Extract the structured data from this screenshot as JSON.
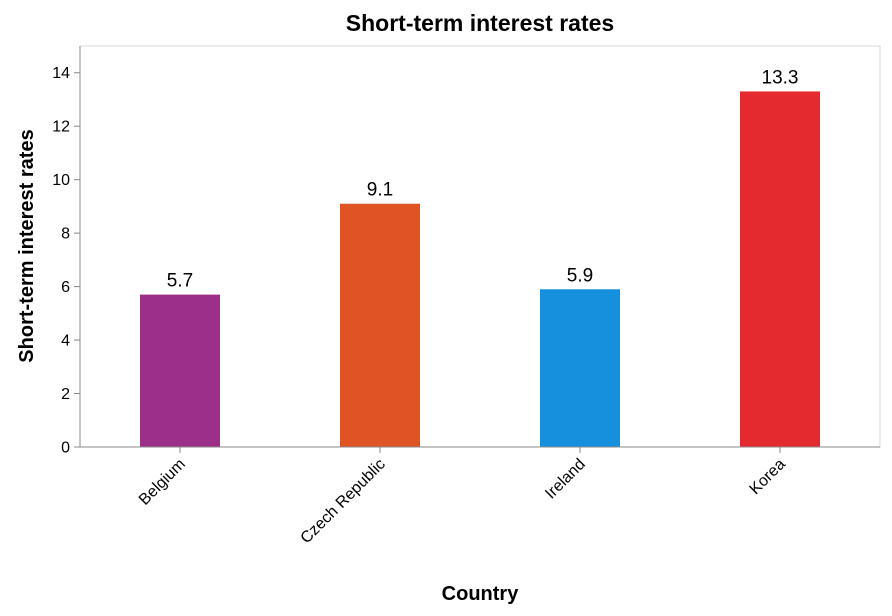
{
  "chart_data": {
    "type": "bar",
    "title": "Short-term interest rates",
    "xlabel": "Country",
    "ylabel": "Short-term interest rates",
    "categories": [
      "Belgium",
      "Czech Republic",
      "Ireland",
      "Korea"
    ],
    "values": [
      5.7,
      9.1,
      5.9,
      13.3
    ],
    "data_labels": [
      "5.7",
      "9.1",
      "5.9",
      "13.3"
    ],
    "colors": [
      "#9b2f8a",
      "#e05325",
      "#1590dc",
      "#e4292f"
    ],
    "ylim": [
      0,
      15
    ],
    "yticks": [
      0,
      2,
      4,
      6,
      8,
      10,
      12,
      14
    ],
    "ytick_labels": [
      "0",
      "2",
      "4",
      "6",
      "8",
      "10",
      "12",
      "14"
    ],
    "grid": false,
    "legend": "none"
  }
}
